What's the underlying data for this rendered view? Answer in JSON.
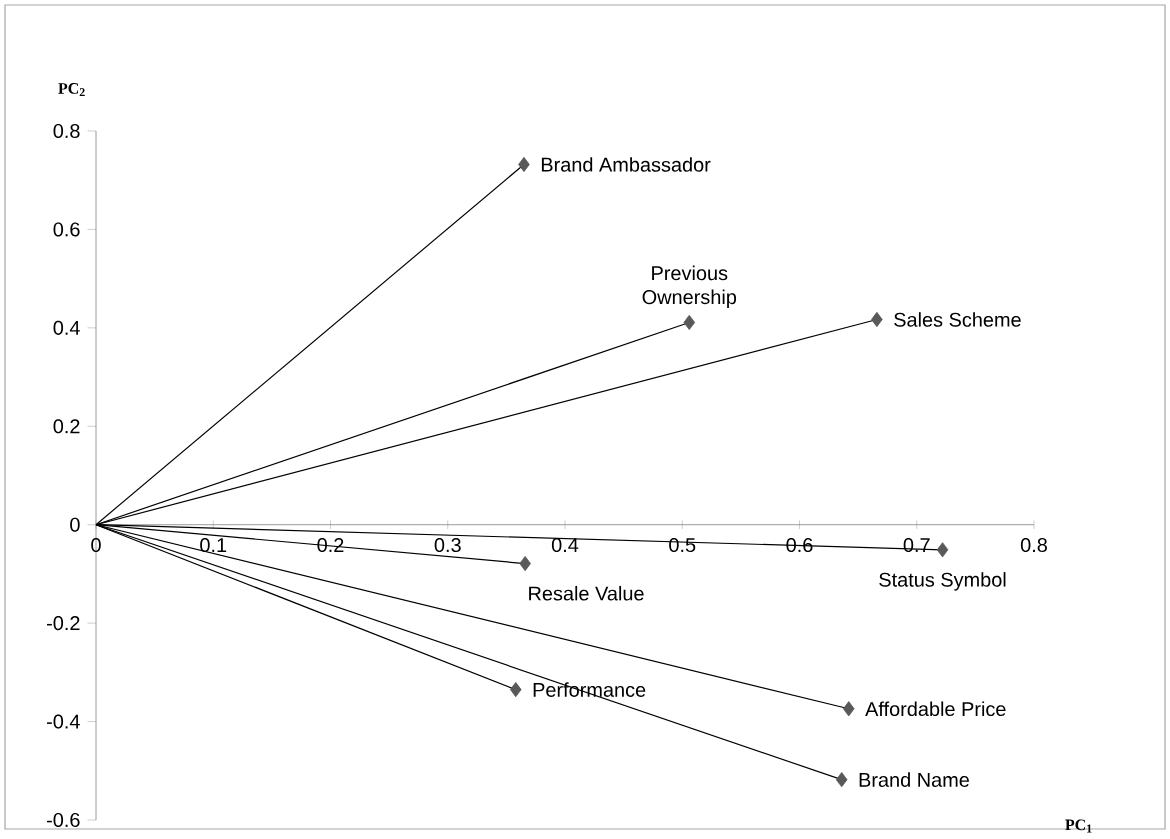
{
  "chart_data": {
    "type": "scatter",
    "xlabel": "PC$_{1}$",
    "ylabel": "PC$_{2}$",
    "xlim": [
      0,
      0.8
    ],
    "ylim": [
      -0.6,
      0.8
    ],
    "xticks": [
      0,
      0.1,
      0.2,
      0.3,
      0.4,
      0.5,
      0.6,
      0.7,
      0.8
    ],
    "yticks": [
      -0.6,
      -0.4,
      -0.2,
      0,
      0.2,
      0.4,
      0.6,
      0.8
    ],
    "series": [
      {
        "type": "line",
        "color": "#000000",
        "marker": "none",
        "x": [
          0,
          0.365
        ],
        "values": [
          0,
          0.732
        ]
      },
      {
        "type": "line",
        "color": "#000000",
        "marker": "none",
        "x": [
          0,
          0.506
        ],
        "values": [
          0,
          0.411
        ]
      },
      {
        "type": "line",
        "color": "#000000",
        "marker": "none",
        "x": [
          0,
          0.666
        ],
        "values": [
          0,
          0.417
        ]
      },
      {
        "type": "line",
        "color": "#000000",
        "marker": "none",
        "x": [
          0,
          0.722
        ],
        "values": [
          0,
          -0.051
        ]
      },
      {
        "type": "line",
        "color": "#000000",
        "marker": "none",
        "x": [
          0,
          0.366
        ],
        "values": [
          0,
          -0.079
        ]
      },
      {
        "type": "line",
        "color": "#000000",
        "marker": "none",
        "x": [
          0,
          0.358
        ],
        "values": [
          0,
          -0.335
        ]
      },
      {
        "type": "line",
        "color": "#000000",
        "marker": "none",
        "x": [
          0,
          0.642
        ],
        "values": [
          0,
          -0.374
        ]
      },
      {
        "type": "line",
        "color": "#000000",
        "marker": "none",
        "x": [
          0,
          0.636
        ],
        "values": [
          0,
          -0.518
        ]
      },
      {
        "color": "#595959",
        "marker": "diamond",
        "x": [
          0.365,
          0.506,
          0.666,
          0.722,
          0.366,
          0.358,
          0.642,
          0.636
        ],
        "values": [
          0.732,
          0.411,
          0.417,
          -0.051,
          -0.079,
          -0.335,
          -0.374,
          -0.518
        ]
      }
    ],
    "annotations": [
      {
        "text": "Brand Ambassador",
        "x": 0.365,
        "y": 0.732
      },
      {
        "text": "Previous Ownership",
        "x": 0.506,
        "y": 0.411
      },
      {
        "text": "Sales Scheme",
        "x": 0.666,
        "y": 0.417
      },
      {
        "text": "Status Symbol",
        "x": 0.722,
        "y": -0.051
      },
      {
        "text": "Resale Value",
        "x": 0.366,
        "y": -0.079
      },
      {
        "text": "Performance",
        "x": 0.358,
        "y": -0.335
      },
      {
        "text": "Affordable Price",
        "x": 0.642,
        "y": -0.374
      },
      {
        "text": "Brand Name",
        "x": 0.636,
        "y": -0.518
      }
    ]
  }
}
